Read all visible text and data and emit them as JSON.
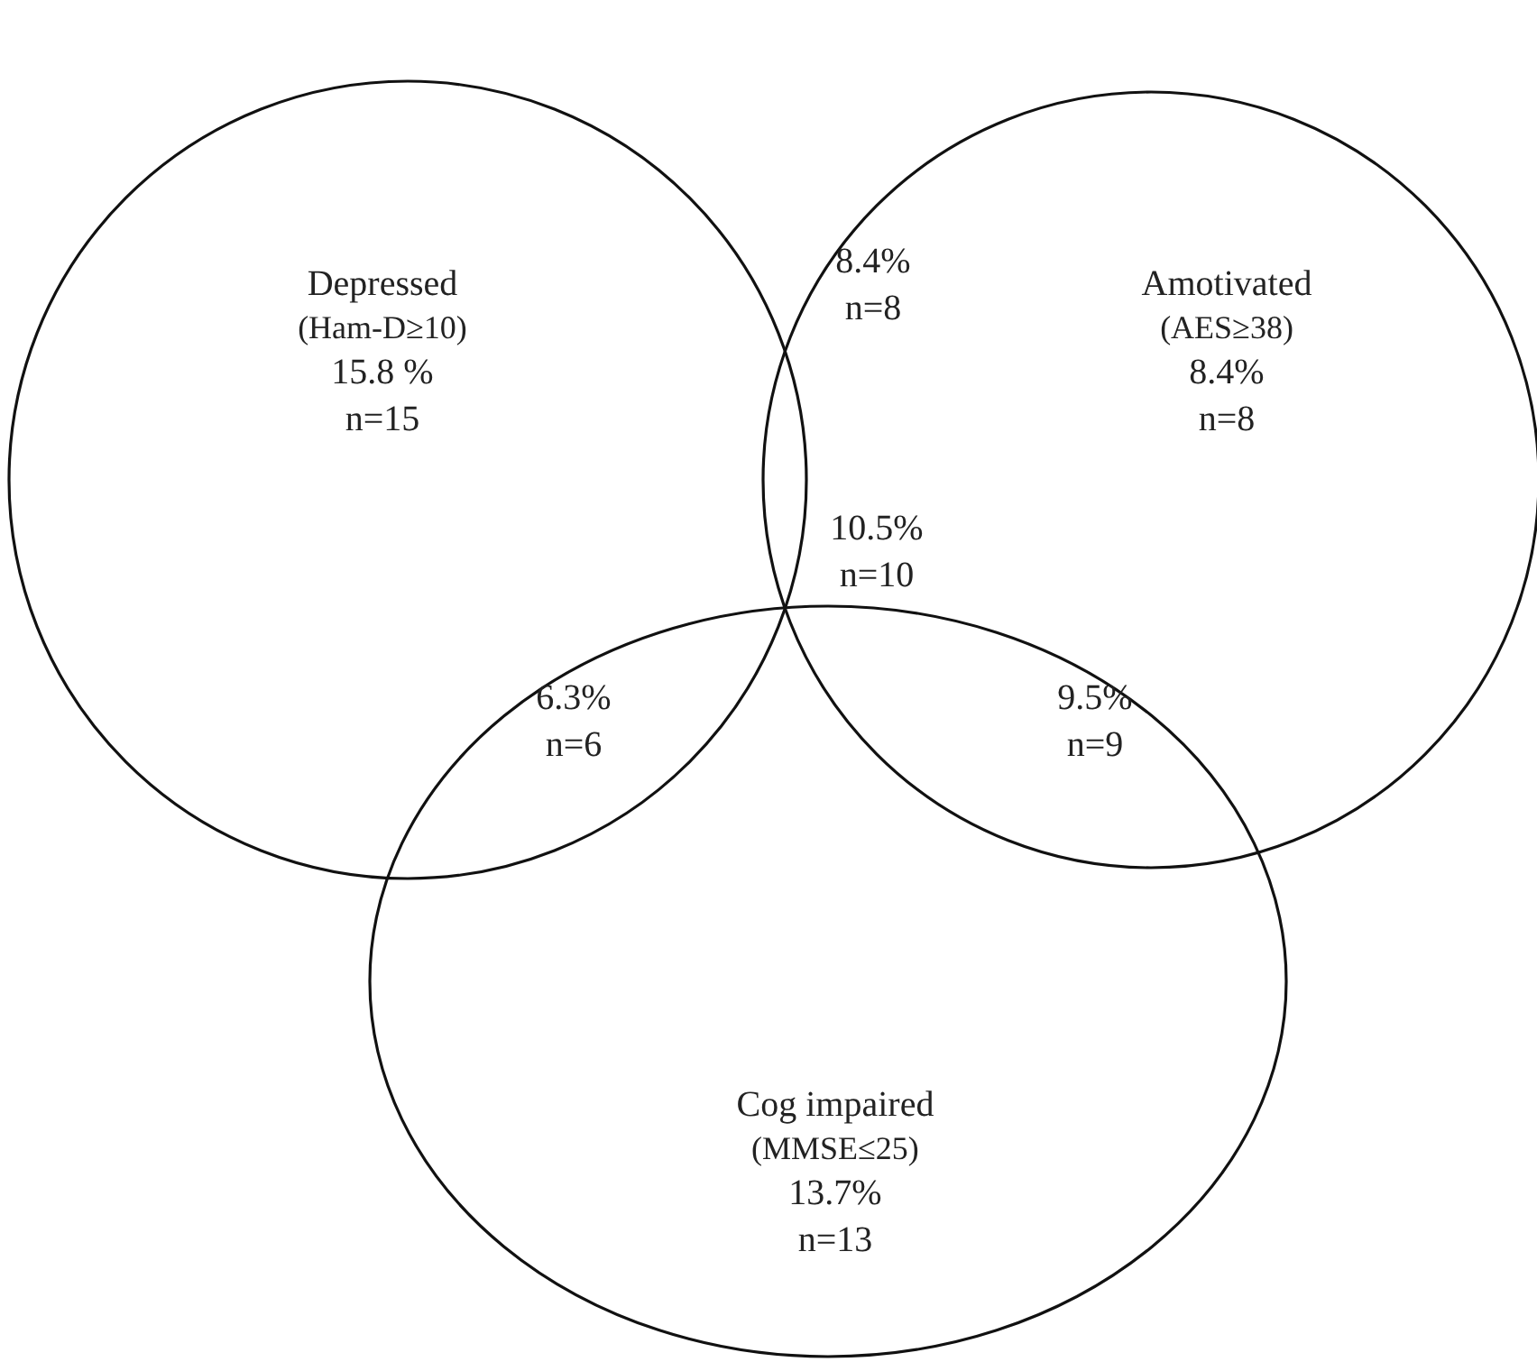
{
  "chart_data": {
    "type": "other",
    "categories": [
      "Depressed (Ham-D≥10)",
      "Amotivated (AES≥38)",
      "Cog impaired (MMSE≤25)"
    ],
    "series": [
      {
        "values": [
          15.8,
          8.4,
          13.7
        ],
        "value_labels": [
          "15.8 %",
          "8.4%",
          "13.7%"
        ]
      },
      {
        "values": [
          15,
          8,
          13
        ],
        "value_labels": [
          "n=15",
          "n=8",
          "n=13"
        ]
      }
    ],
    "annotations": [
      "8.4%",
      "n=8",
      "10.5%",
      "n=10",
      "6.3%",
      "n=6",
      "9.5%",
      "n=9"
    ]
  }
}
